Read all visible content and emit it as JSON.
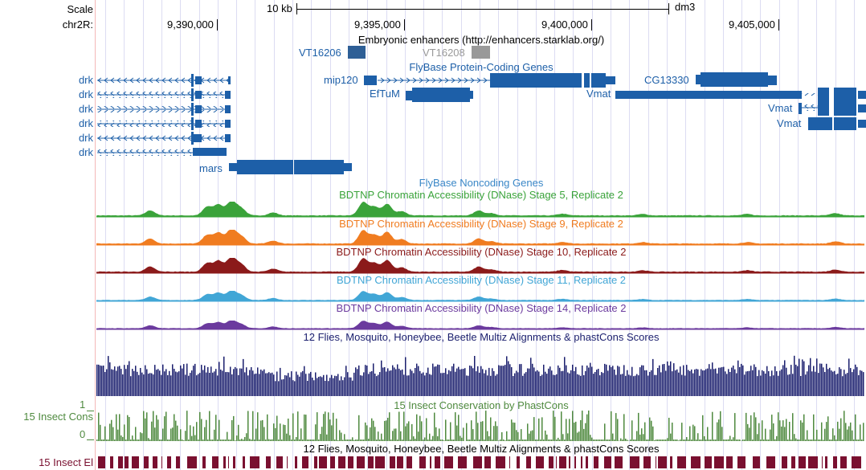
{
  "header": {
    "scale_label": "Scale",
    "scale_bar_label": "10 kb",
    "assembly": "dm3",
    "chrom_label": "chr2R:",
    "ticks": [
      "9,390,000",
      "9,395,000",
      "9,400,000",
      "9,405,000"
    ]
  },
  "tracks": {
    "enhancers": {
      "title": "Embryonic enhancers (http://enhancers.starklab.org/)",
      "items": [
        "VT16206",
        "VT16208"
      ]
    },
    "protein_coding": {
      "title": "FlyBase Protein-Coding Genes",
      "genes": [
        "drk",
        "drk",
        "drk",
        "drk",
        "drk",
        "drk",
        "mars",
        "mip120",
        "EfTuM",
        "CG13330",
        "Vmat",
        "Vmat",
        "Vmat"
      ]
    },
    "noncoding": {
      "title": "FlyBase Noncoding Genes"
    },
    "dnase": [
      {
        "title": "BDTNP Chromatin Accessibility (DNase) Stage 5, Replicate 2",
        "color": "#3aa33a"
      },
      {
        "title": "BDTNP Chromatin Accessibility (DNase) Stage 9, Replicate 2",
        "color": "#f07c20"
      },
      {
        "title": "BDTNP Chromatin Accessibility (DNase) Stage 10, Replicate 2",
        "color": "#8b1a1a"
      },
      {
        "title": "BDTNP Chromatin Accessibility (DNase) Stage 11, Replicate 2",
        "color": "#41a6d6"
      },
      {
        "title": "BDTNP Chromatin Accessibility (DNase) Stage 14, Replicate 2",
        "color": "#6b3a9e"
      }
    ],
    "multiz": {
      "title": "12 Flies, Mosquito, Honeybee, Beetle Multiz Alignments & phastCons Scores",
      "color": "#1b1f6e"
    },
    "phastcons": {
      "title": "15 Insect Conservation by PhastCons",
      "side_label": "15 Insect Cons",
      "ymax": "1",
      "ymin": "0",
      "color": "#4f8a3f"
    },
    "elements": {
      "title": "12 Flies, Mosquito, Honeybee, Beetle Multiz Alignments & phastCons Scores",
      "side_label": "15 Insect El",
      "color": "#7a1030"
    }
  }
}
